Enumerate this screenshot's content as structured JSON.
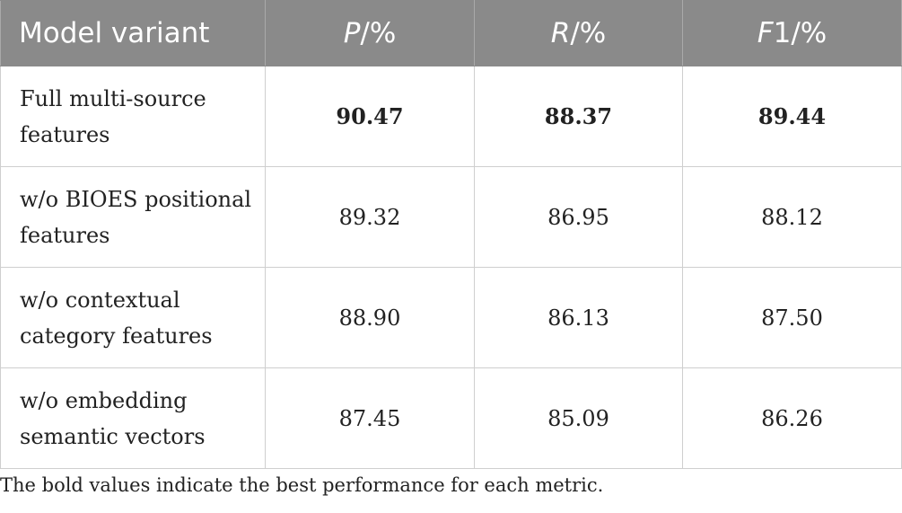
{
  "table": {
    "headers": {
      "model_variant": "Model variant",
      "p": {
        "var": "P",
        "unit": "/%"
      },
      "r": {
        "var": "R",
        "unit": "/%"
      },
      "f1": {
        "var": "F",
        "rest": "1/%"
      }
    },
    "rows": [
      {
        "name_line1": "Full multi-source",
        "name_line2": "features",
        "p": "90.47",
        "r": "88.37",
        "f1": "89.44"
      },
      {
        "name_line1": "w/o BIOES positional",
        "name_line2": "features",
        "p": "89.32",
        "r": "86.95",
        "f1": "88.12"
      },
      {
        "name_line1": "w/o contextual",
        "name_line2": "category features",
        "p": "88.90",
        "r": "86.13",
        "f1": "87.50"
      },
      {
        "name_line1": "w/o embedding",
        "name_line2": "semantic vectors",
        "p": "87.45",
        "r": "85.09",
        "f1": "86.26"
      }
    ]
  },
  "footnote": "The bold values indicate the best performance for each metric."
}
